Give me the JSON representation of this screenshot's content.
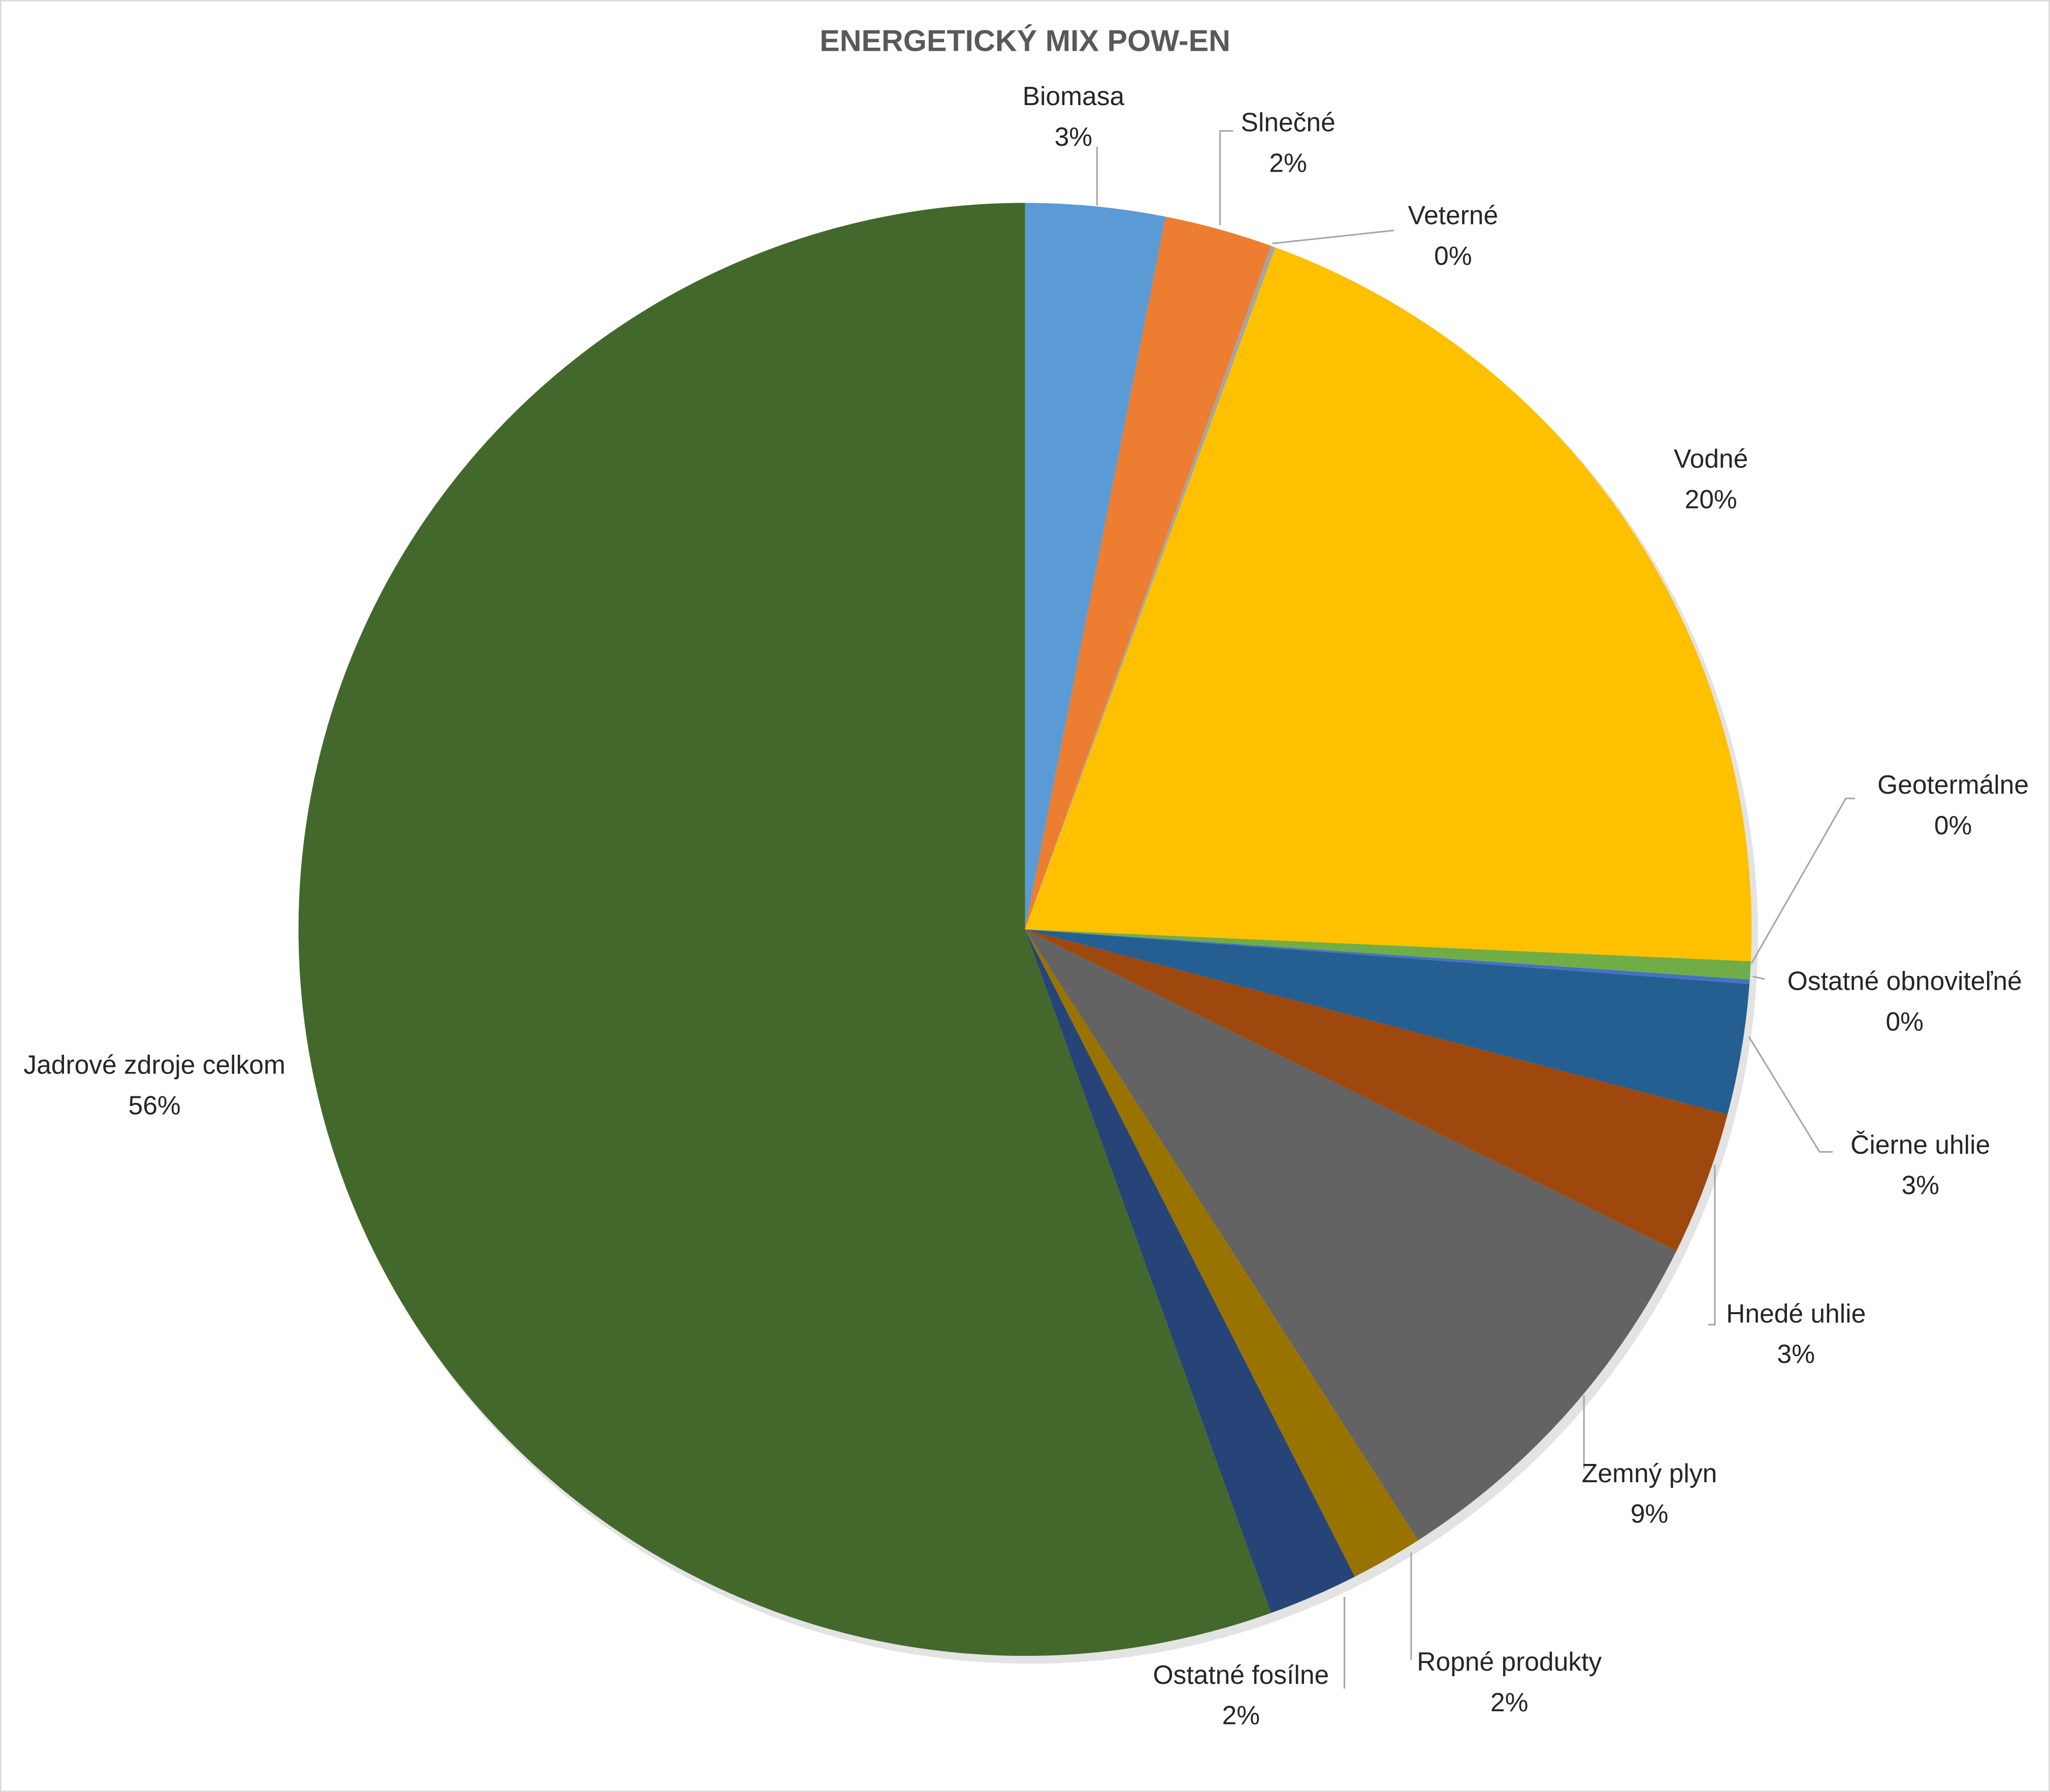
{
  "chart_data": {
    "type": "pie",
    "title": "ENERGETICKÝ MIX POW-EN",
    "categories": [
      "Biomasa",
      "Slnečné",
      "Veterné",
      "Vodné",
      "Geotermálne",
      "Ostatné obnoviteľné",
      "Čierne uhlie",
      "Hnedé uhlie",
      "Zemný plyn",
      "Ropné produkty",
      "Ostatné fosílne",
      "Jadrové zdroje celkom"
    ],
    "values": [
      3.1,
      2.4,
      0.1,
      20.1,
      0.4,
      0.1,
      2.9,
      3.2,
      8.6,
      1.6,
      2.0,
      55.5
    ],
    "value_labels": [
      "3%",
      "2%",
      "0%",
      "20%",
      "0%",
      "0%",
      "3%",
      "3%",
      "9%",
      "2%",
      "2%",
      "56%"
    ],
    "colors": [
      "#5b9bd5",
      "#ed7d31",
      "#a5a5a5",
      "#ffc000",
      "#70ad47",
      "#4472c4",
      "#255e91",
      "#9e480e",
      "#636363",
      "#997300",
      "#264478",
      "#43682b"
    ]
  }
}
